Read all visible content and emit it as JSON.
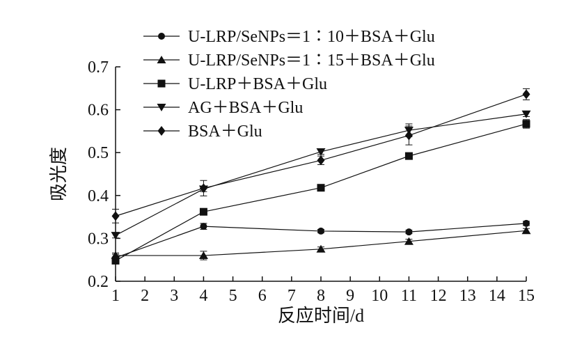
{
  "chart_data": {
    "type": "line",
    "xlabel": "反应时间/d",
    "ylabel": "吸光度",
    "x_ticks": [
      1,
      2,
      3,
      4,
      5,
      6,
      7,
      8,
      9,
      10,
      11,
      12,
      13,
      14,
      15
    ],
    "y_ticks": [
      "0.2",
      "0.3",
      "0.4",
      "0.5",
      "0.6",
      "0.7"
    ],
    "xlim": [
      1,
      15
    ],
    "ylim": [
      0.2,
      0.7
    ],
    "grid": false,
    "legend_position": "top-left",
    "x": [
      1,
      4,
      8,
      11,
      15
    ],
    "series": [
      {
        "name": "U-LRP/SeNPs＝1∶10＋BSA＋Glu",
        "marker": "circle",
        "values": [
          0.255,
          0.328,
          0.317,
          0.315,
          0.335
        ],
        "errors": [
          0.008,
          0.007,
          0.004,
          0.004,
          0.005
        ]
      },
      {
        "name": "U-LRP/SeNPs＝1∶15＋BSA＋Glu",
        "marker": "triangle-up",
        "values": [
          0.26,
          0.26,
          0.275,
          0.293,
          0.318
        ],
        "errors": [
          0.006,
          0.01,
          0.005,
          0.005,
          0.005
        ]
      },
      {
        "name": "U-LRP＋BSA＋Glu",
        "marker": "square",
        "values": [
          0.248,
          0.362,
          0.418,
          0.492,
          0.567
        ],
        "errors": [
          0.005,
          0.005,
          0.005,
          0.006,
          0.01
        ]
      },
      {
        "name": "AG＋BSA＋Glu",
        "marker": "triangle-down",
        "values": [
          0.307,
          0.415,
          0.502,
          0.552,
          0.59
        ],
        "errors": [
          0.006,
          0.006,
          0.006,
          0.015,
          0.006
        ]
      },
      {
        "name": "BSA＋Glu",
        "marker": "diamond",
        "values": [
          0.352,
          0.417,
          0.482,
          0.54,
          0.636
        ],
        "errors": [
          0.016,
          0.018,
          0.01,
          0.022,
          0.013
        ]
      }
    ]
  }
}
